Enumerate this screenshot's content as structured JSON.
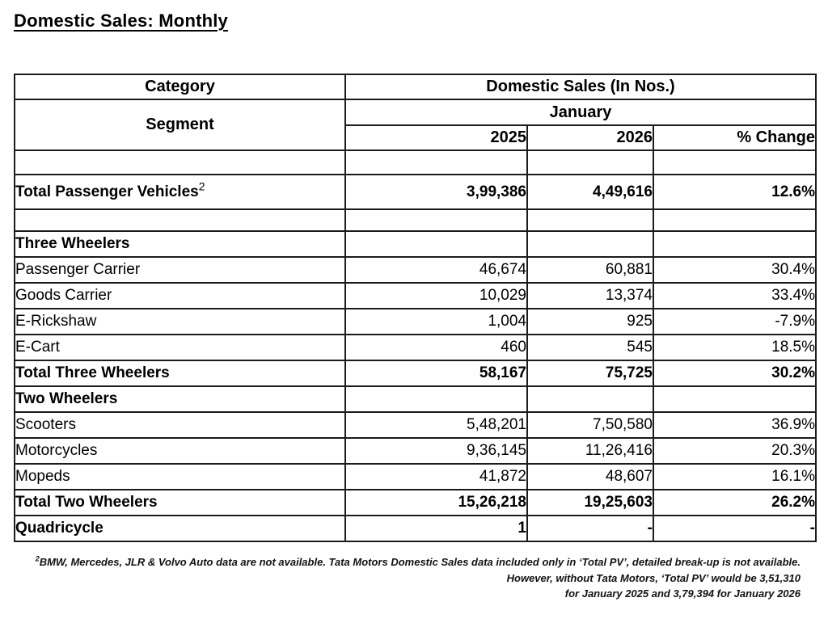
{
  "page": {
    "title": "Domestic Sales: Monthly"
  },
  "table": {
    "headers": {
      "category": "Category",
      "domestic_sales": "Domestic Sales (In Nos.)",
      "segment": "Segment",
      "month": "January",
      "year_2025": "2025",
      "year_2026": "2026",
      "pct_change": "% Change"
    },
    "rows": [
      {
        "kind": "spacer",
        "label": "",
        "y2025": "",
        "y2026": "",
        "change": ""
      },
      {
        "kind": "total",
        "label": "Total Passenger Vehicles",
        "sup": "2",
        "y2025": "3,99,386",
        "y2026": "4,49,616",
        "change": "12.6%"
      },
      {
        "kind": "spacer2",
        "label": "",
        "y2025": "",
        "y2026": "",
        "change": ""
      },
      {
        "kind": "section",
        "label": "Three Wheelers",
        "y2025": "",
        "y2026": "",
        "change": ""
      },
      {
        "kind": "data",
        "label": "Passenger Carrier",
        "y2025": "46,674",
        "y2026": "60,881",
        "change": "30.4%"
      },
      {
        "kind": "data",
        "label": "Goods Carrier",
        "y2025": "10,029",
        "y2026": "13,374",
        "change": "33.4%"
      },
      {
        "kind": "data",
        "label": "E-Rickshaw",
        "y2025": "1,004",
        "y2026": "925",
        "change": "-7.9%"
      },
      {
        "kind": "data",
        "label": "E-Cart",
        "y2025": "460",
        "y2026": "545",
        "change": "18.5%"
      },
      {
        "kind": "total2",
        "label": "Total Three Wheelers",
        "y2025": "58,167",
        "y2026": "75,725",
        "change": "30.2%"
      },
      {
        "kind": "section",
        "label": "Two Wheelers",
        "y2025": "",
        "y2026": "",
        "change": ""
      },
      {
        "kind": "data",
        "label": "Scooters",
        "y2025": "5,48,201",
        "y2026": "7,50,580",
        "change": "36.9%"
      },
      {
        "kind": "data",
        "label": "Motorcycles",
        "y2025": "9,36,145",
        "y2026": "11,26,416",
        "change": "20.3%"
      },
      {
        "kind": "data",
        "label": "Mopeds",
        "y2025": "41,872",
        "y2026": "48,607",
        "change": "16.1%"
      },
      {
        "kind": "total2",
        "label": "Total Two Wheelers",
        "y2025": "15,26,218",
        "y2026": "19,25,603",
        "change": "26.2%"
      },
      {
        "kind": "total2",
        "label": "Quadricycle",
        "y2025": "1",
        "y2026": "-",
        "change": "-"
      }
    ]
  },
  "footnote": {
    "sup": "2",
    "line1": "BMW, Mercedes, JLR & Volvo Auto data are not available. Tata Motors Domestic Sales data included only in ‘Total PV’, detailed break-up is not available.",
    "line2": "However, without Tata Motors, ‘Total PV’ would be 3,51,310",
    "line3": "for January 2025 and 3,79,394 for January 2026"
  },
  "colors": {
    "background": "#ffffff",
    "text": "#000000",
    "border": "#1b1b1b"
  }
}
